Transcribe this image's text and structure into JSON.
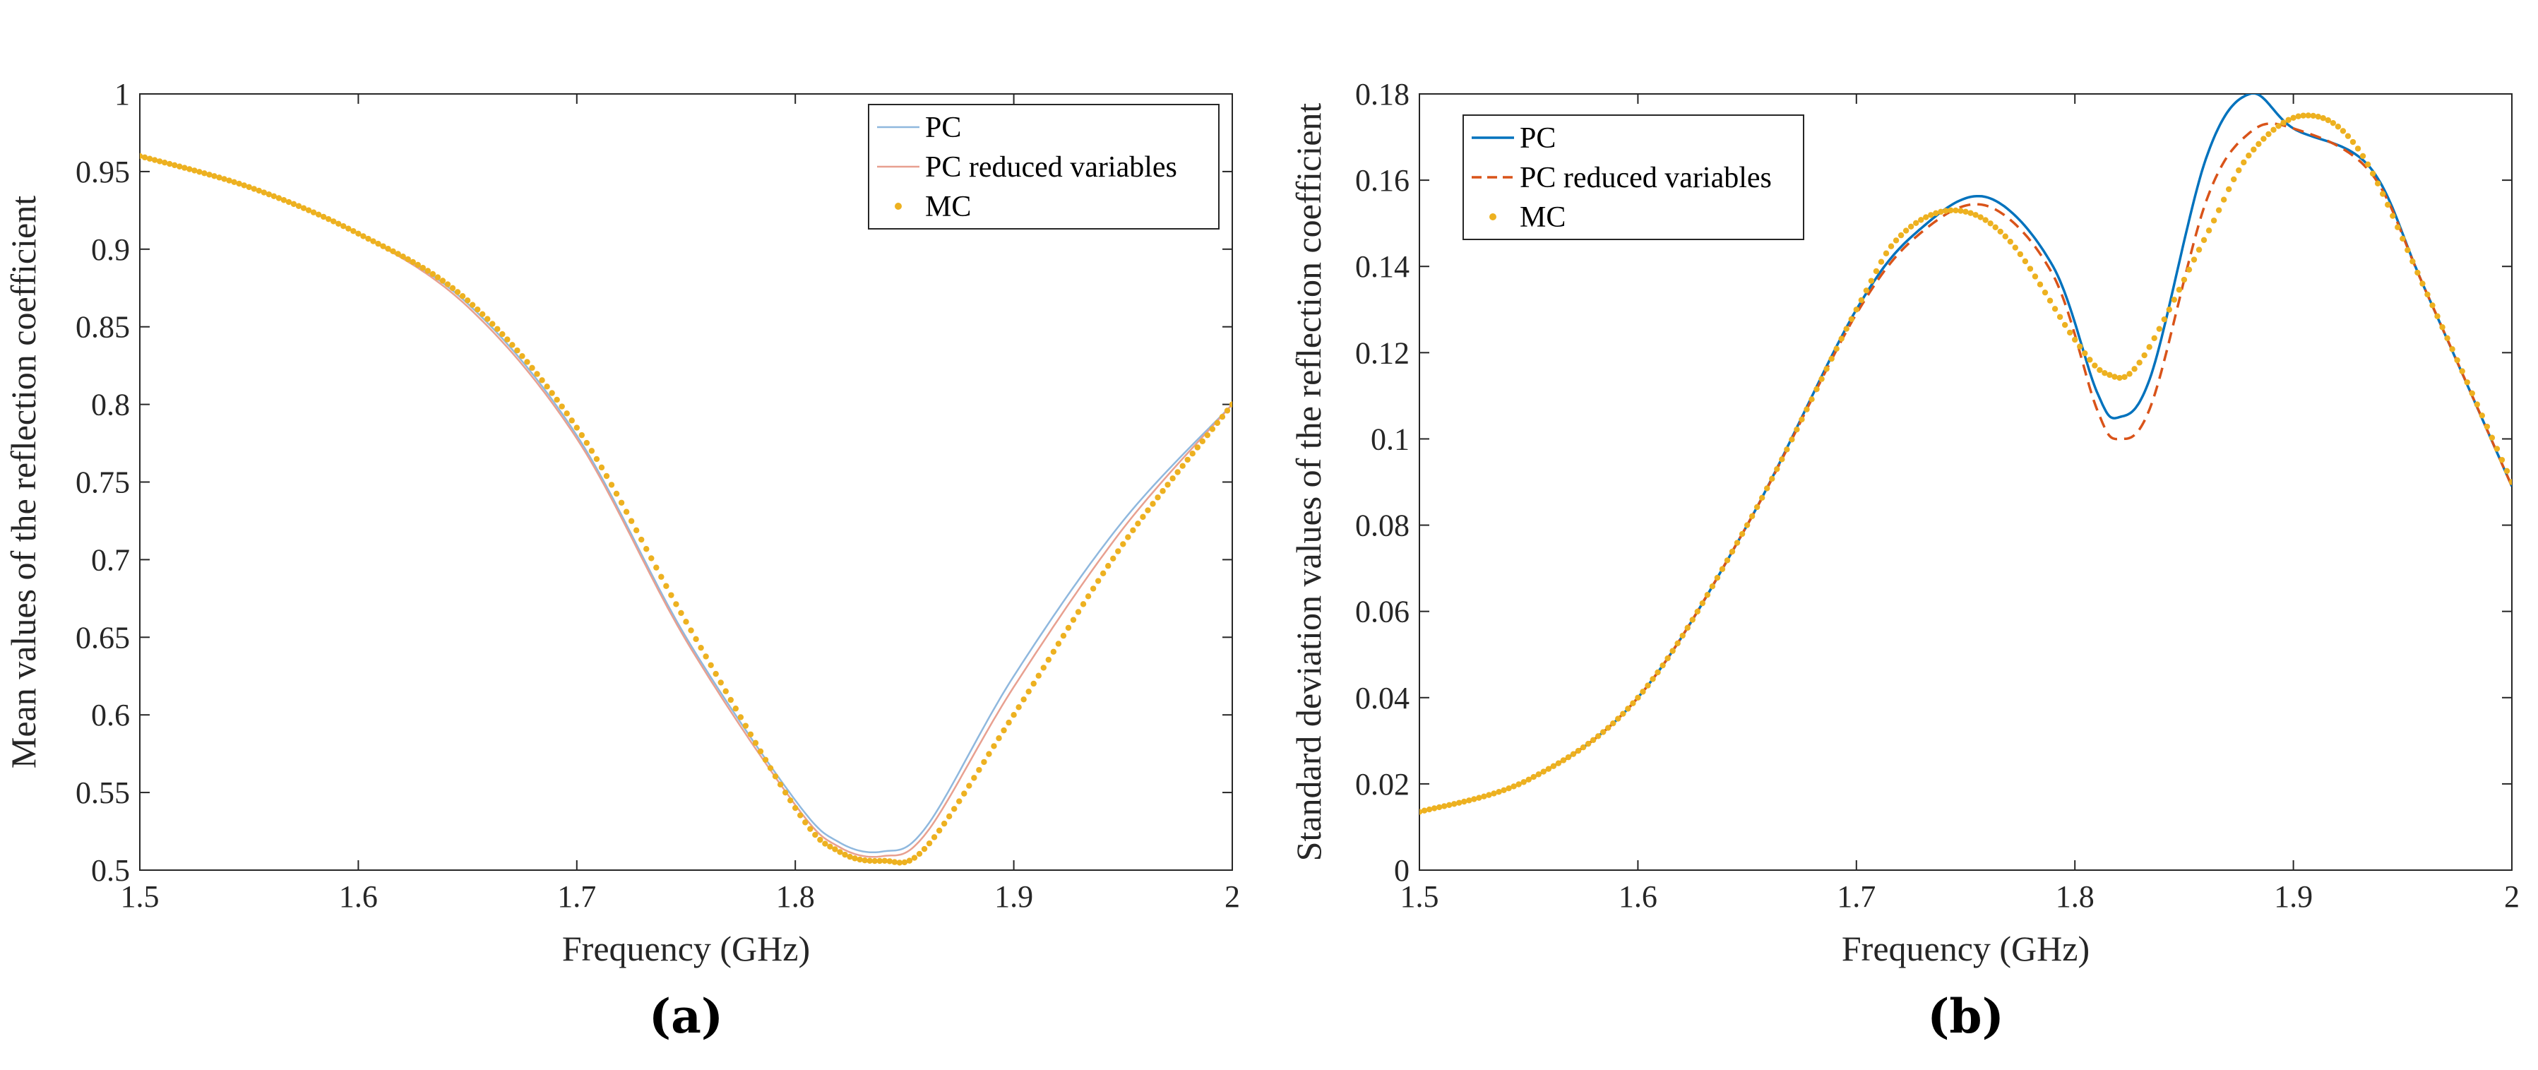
{
  "chart_data": [
    {
      "type": "line",
      "panel_label": "(a)",
      "xlabel": "Frequency (GHz)",
      "ylabel": "Mean values of the reflection coefficient",
      "xlim": [
        1.5,
        2.0
      ],
      "ylim": [
        0.5,
        1.0
      ],
      "xticks": [
        "1.5",
        "1.6",
        "1.7",
        "1.8",
        "1.9",
        "2"
      ],
      "yticks": [
        "0.5",
        "0.55",
        "0.6",
        "0.65",
        "0.7",
        "0.75",
        "0.8",
        "0.85",
        "0.9",
        "0.95",
        "1"
      ],
      "grid": false,
      "legend": "top-right",
      "series": [
        {
          "name": "PC",
          "style": "line",
          "color": "#8fb8de",
          "x": [
            1.5,
            1.55,
            1.6,
            1.65,
            1.7,
            1.75,
            1.8,
            1.82,
            1.84,
            1.86,
            1.9,
            1.95,
            2.0
          ],
          "y": [
            0.96,
            0.94,
            0.91,
            0.865,
            0.78,
            0.65,
            0.545,
            0.518,
            0.512,
            0.528,
            0.625,
            0.725,
            0.8
          ]
        },
        {
          "name": "PC reduced variables",
          "style": "line",
          "color": "#e8a090",
          "x": [
            1.5,
            1.55,
            1.6,
            1.65,
            1.7,
            1.75,
            1.8,
            1.82,
            1.84,
            1.86,
            1.9,
            1.95,
            2.0
          ],
          "y": [
            0.96,
            0.94,
            0.91,
            0.863,
            0.778,
            0.648,
            0.542,
            0.515,
            0.509,
            0.524,
            0.618,
            0.72,
            0.8
          ]
        },
        {
          "name": "MC",
          "style": "dots",
          "color": "#edb120",
          "x": [
            1.5,
            1.55,
            1.6,
            1.65,
            1.7,
            1.75,
            1.8,
            1.82,
            1.84,
            1.86,
            1.9,
            1.95,
            2.0
          ],
          "y": [
            0.96,
            0.94,
            0.91,
            0.867,
            0.785,
            0.66,
            0.54,
            0.512,
            0.506,
            0.515,
            0.6,
            0.71,
            0.8
          ]
        }
      ]
    },
    {
      "type": "line",
      "panel_label": "(b)",
      "xlabel": "Frequency (GHz)",
      "ylabel": "Standard deviation values of the reflection coefficient",
      "xlim": [
        1.5,
        2.0
      ],
      "ylim": [
        0,
        0.18
      ],
      "xticks": [
        "1.5",
        "1.6",
        "1.7",
        "1.8",
        "1.9",
        "2"
      ],
      "yticks": [
        "0",
        "0.02",
        "0.04",
        "0.06",
        "0.08",
        "0.1",
        "0.12",
        "0.14",
        "0.16",
        "0.18"
      ],
      "grid": false,
      "legend": "top-left",
      "series": [
        {
          "name": "PC",
          "style": "line",
          "color": "#0072bd",
          "x": [
            1.5,
            1.55,
            1.6,
            1.65,
            1.7,
            1.73,
            1.76,
            1.79,
            1.81,
            1.82,
            1.835,
            1.86,
            1.88,
            1.9,
            1.935,
            1.96,
            2.0
          ],
          "y": [
            0.0135,
            0.021,
            0.04,
            0.08,
            0.13,
            0.149,
            0.156,
            0.14,
            0.111,
            0.105,
            0.115,
            0.165,
            0.18,
            0.172,
            0.163,
            0.135,
            0.089
          ]
        },
        {
          "name": "PC reduced variables",
          "style": "dashed",
          "color": "#d95319",
          "x": [
            1.5,
            1.55,
            1.6,
            1.65,
            1.7,
            1.73,
            1.76,
            1.79,
            1.81,
            1.82,
            1.835,
            1.86,
            1.88,
            1.9,
            1.935,
            1.96,
            2.0
          ],
          "y": [
            0.0135,
            0.021,
            0.04,
            0.08,
            0.129,
            0.148,
            0.154,
            0.138,
            0.107,
            0.1,
            0.108,
            0.155,
            0.171,
            0.172,
            0.162,
            0.135,
            0.089
          ]
        },
        {
          "name": "MC",
          "style": "dots",
          "color": "#edb120",
          "x": [
            1.5,
            1.55,
            1.6,
            1.65,
            1.7,
            1.72,
            1.745,
            1.77,
            1.8,
            1.815,
            1.83,
            1.86,
            1.88,
            1.905,
            1.93,
            1.96,
            2.0
          ],
          "y": [
            0.0135,
            0.021,
            0.04,
            0.08,
            0.13,
            0.147,
            0.153,
            0.146,
            0.123,
            0.115,
            0.118,
            0.147,
            0.166,
            0.175,
            0.167,
            0.135,
            0.09
          ]
        }
      ]
    }
  ]
}
